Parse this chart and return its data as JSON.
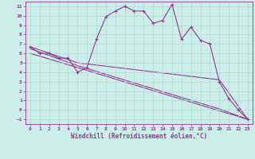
{
  "xlabel": "Windchill (Refroidissement éolien,°C)",
  "bg_color": "#cceee8",
  "line_color": "#993399",
  "grid_color": "#aaddcc",
  "xlim": [
    -0.5,
    23.5
  ],
  "ylim": [
    -1.5,
    11.5
  ],
  "xticks": [
    0,
    1,
    2,
    3,
    4,
    5,
    6,
    7,
    8,
    9,
    10,
    11,
    12,
    13,
    14,
    15,
    16,
    17,
    18,
    19,
    20,
    21,
    22,
    23
  ],
  "yticks": [
    -1,
    0,
    1,
    2,
    3,
    4,
    5,
    6,
    7,
    8,
    9,
    10,
    11
  ],
  "series1_x": [
    0,
    1,
    2,
    3,
    4,
    5,
    6,
    7,
    8,
    9,
    10,
    11,
    12,
    13,
    14,
    15,
    16,
    17,
    18,
    19,
    20,
    21,
    22,
    23
  ],
  "series1_y": [
    6.7,
    6.0,
    6.0,
    5.5,
    5.5,
    4.0,
    4.5,
    7.5,
    9.9,
    10.5,
    11.0,
    10.5,
    10.5,
    9.2,
    9.5,
    11.2,
    7.5,
    8.8,
    7.4,
    7.0,
    3.0,
    1.2,
    0.0,
    -1.0
  ],
  "series2_x": [
    0,
    5,
    20,
    23
  ],
  "series2_y": [
    6.7,
    5.0,
    3.2,
    -1.0
  ],
  "series3_x": [
    0,
    5,
    20,
    23
  ],
  "series3_y": [
    6.5,
    4.7,
    0.1,
    -1.0
  ],
  "series4_x": [
    0,
    5,
    20,
    23
  ],
  "series4_y": [
    6.0,
    4.5,
    -0.1,
    -1.0
  ]
}
